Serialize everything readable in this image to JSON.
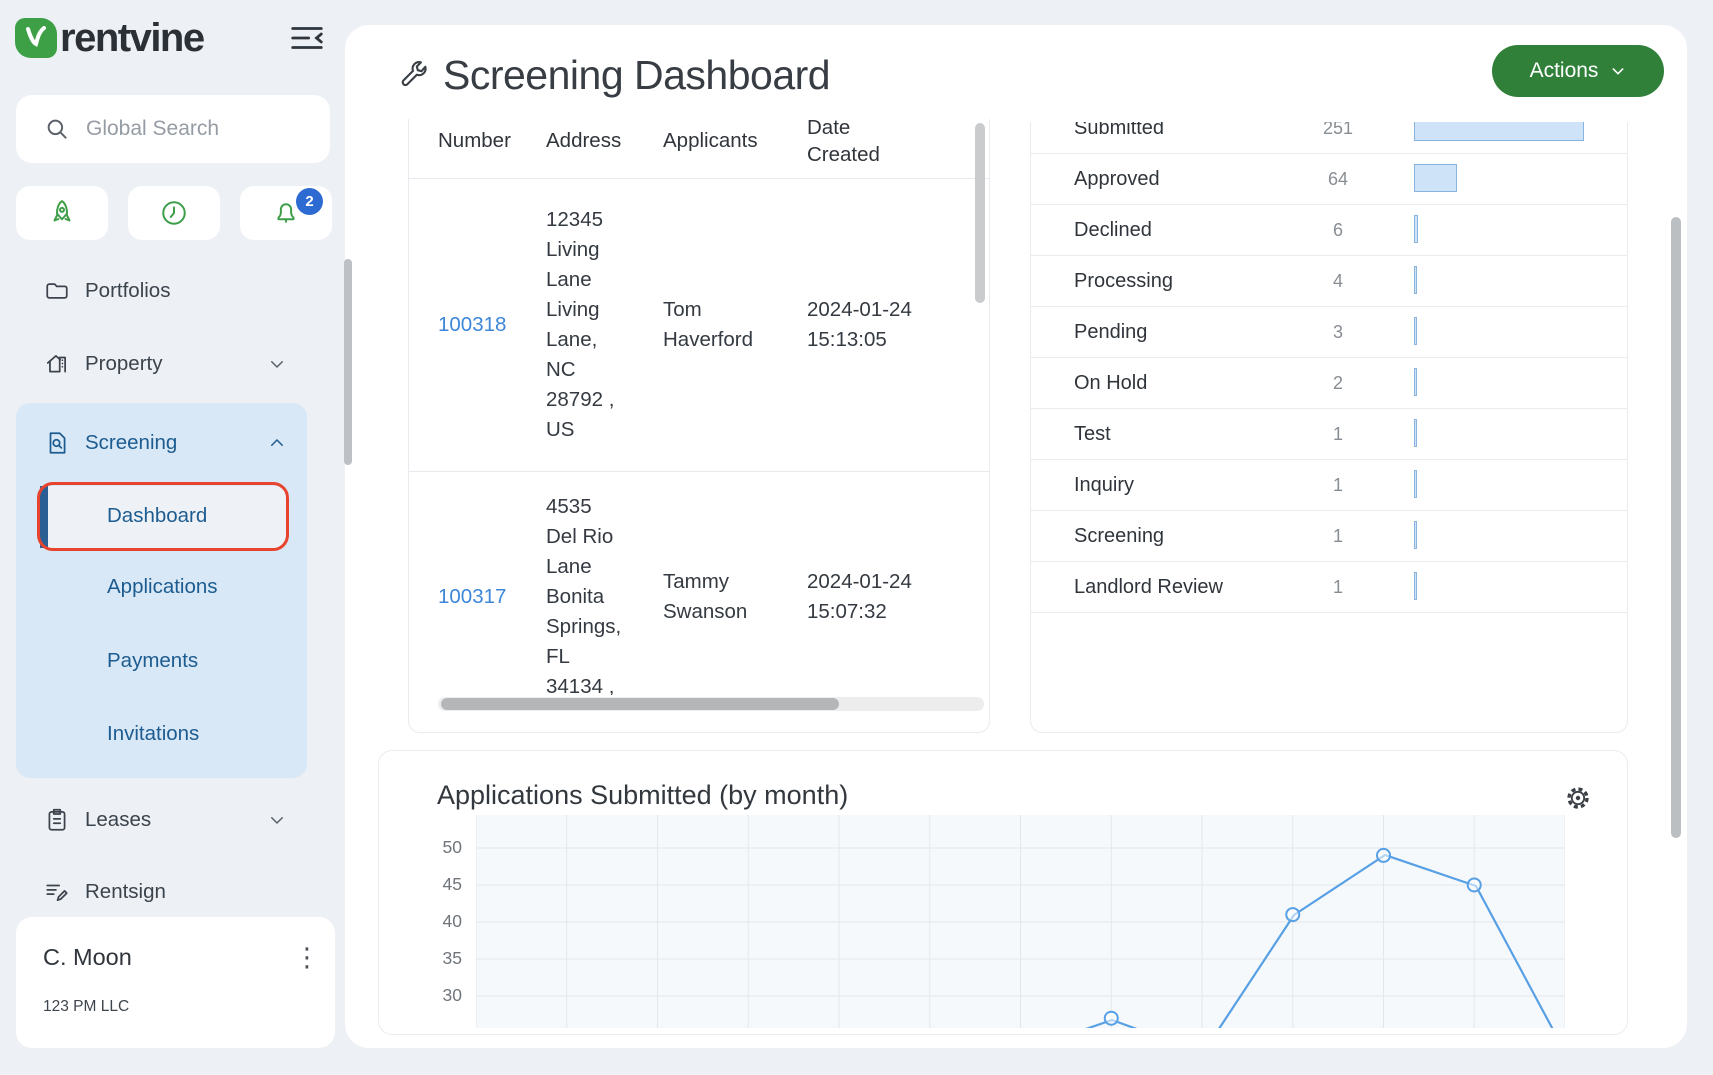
{
  "sidebar": {
    "logo_text": "rentvine",
    "search": {
      "placeholder": "Global Search"
    },
    "quick_buttons": [
      {
        "icon": "rocket-icon"
      },
      {
        "icon": "clock-icon"
      },
      {
        "icon": "bell-icon",
        "badge": "2"
      }
    ],
    "nav": {
      "portfolios": "Portfolios",
      "property": "Property",
      "screening": "Screening",
      "screening_items": [
        "Dashboard",
        "Applications",
        "Payments",
        "Invitations"
      ],
      "active_item": "Dashboard",
      "leases": "Leases",
      "rentsign": "Rentsign"
    },
    "user": {
      "name": "C. Moon",
      "org": "123 PM LLC"
    }
  },
  "header": {
    "title": "Screening Dashboard",
    "actions_label": "Actions"
  },
  "recent_applications": {
    "columns": [
      "Number",
      "Address",
      "Applicants",
      "Date Created"
    ],
    "rows": [
      {
        "number": "100318",
        "address": "12345 Living Lane Living Lane, NC 28792 , US",
        "applicants": "Tom Haverford",
        "date_created": "2024-01-24 15:13:05"
      },
      {
        "number": "100317",
        "address": "4535 Del Rio Lane Bonita Springs, FL 34134 ,",
        "applicants": "Tammy Swanson",
        "date_created": "2024-01-24 15:07:32"
      }
    ]
  },
  "status_summary": {
    "rows": [
      {
        "label": "Submitted",
        "value": 251
      },
      {
        "label": "Approved",
        "value": 64
      },
      {
        "label": "Declined",
        "value": 6
      },
      {
        "label": "Processing",
        "value": 4
      },
      {
        "label": "Pending",
        "value": 3
      },
      {
        "label": "On Hold",
        "value": 2
      },
      {
        "label": "Test",
        "value": 1
      },
      {
        "label": "Inquiry",
        "value": 1
      },
      {
        "label": "Screening",
        "value": 1
      },
      {
        "label": "Landlord Review",
        "value": 1
      }
    ]
  },
  "chart_data": {
    "type": "line",
    "title": "Applications Submitted (by month)",
    "xlabel": "",
    "ylabel": "",
    "yticks": [
      30,
      35,
      40,
      45,
      50
    ],
    "ylim_visible": [
      27,
      52
    ],
    "grid": true,
    "x_tick_labels_visible": false,
    "series": [
      {
        "name": "Applications Submitted",
        "visible_points": [
          {
            "x_slot": 7,
            "value": 27
          },
          {
            "x_slot": 9,
            "value": 41
          },
          {
            "x_slot": 10,
            "value": 49
          },
          {
            "x_slot": 11,
            "value": 45
          }
        ],
        "note": "line dips below the visible crop between slot 7-9 and after slot 11"
      }
    ],
    "line_color": "#57a0e5"
  },
  "colors": {
    "page_bg": "#edf0f4",
    "accent_green": "#30803a",
    "icon_green": "#3f9e49",
    "link_blue": "#3e86d8",
    "badge_blue": "#2d6bd3",
    "bar_fill": "#cfe3f8",
    "bar_border": "#8ab4e0",
    "annotation_red": "#e8432d",
    "active_group_bg": "#d9e8f6",
    "subnav_navy": "#1d5c90"
  }
}
